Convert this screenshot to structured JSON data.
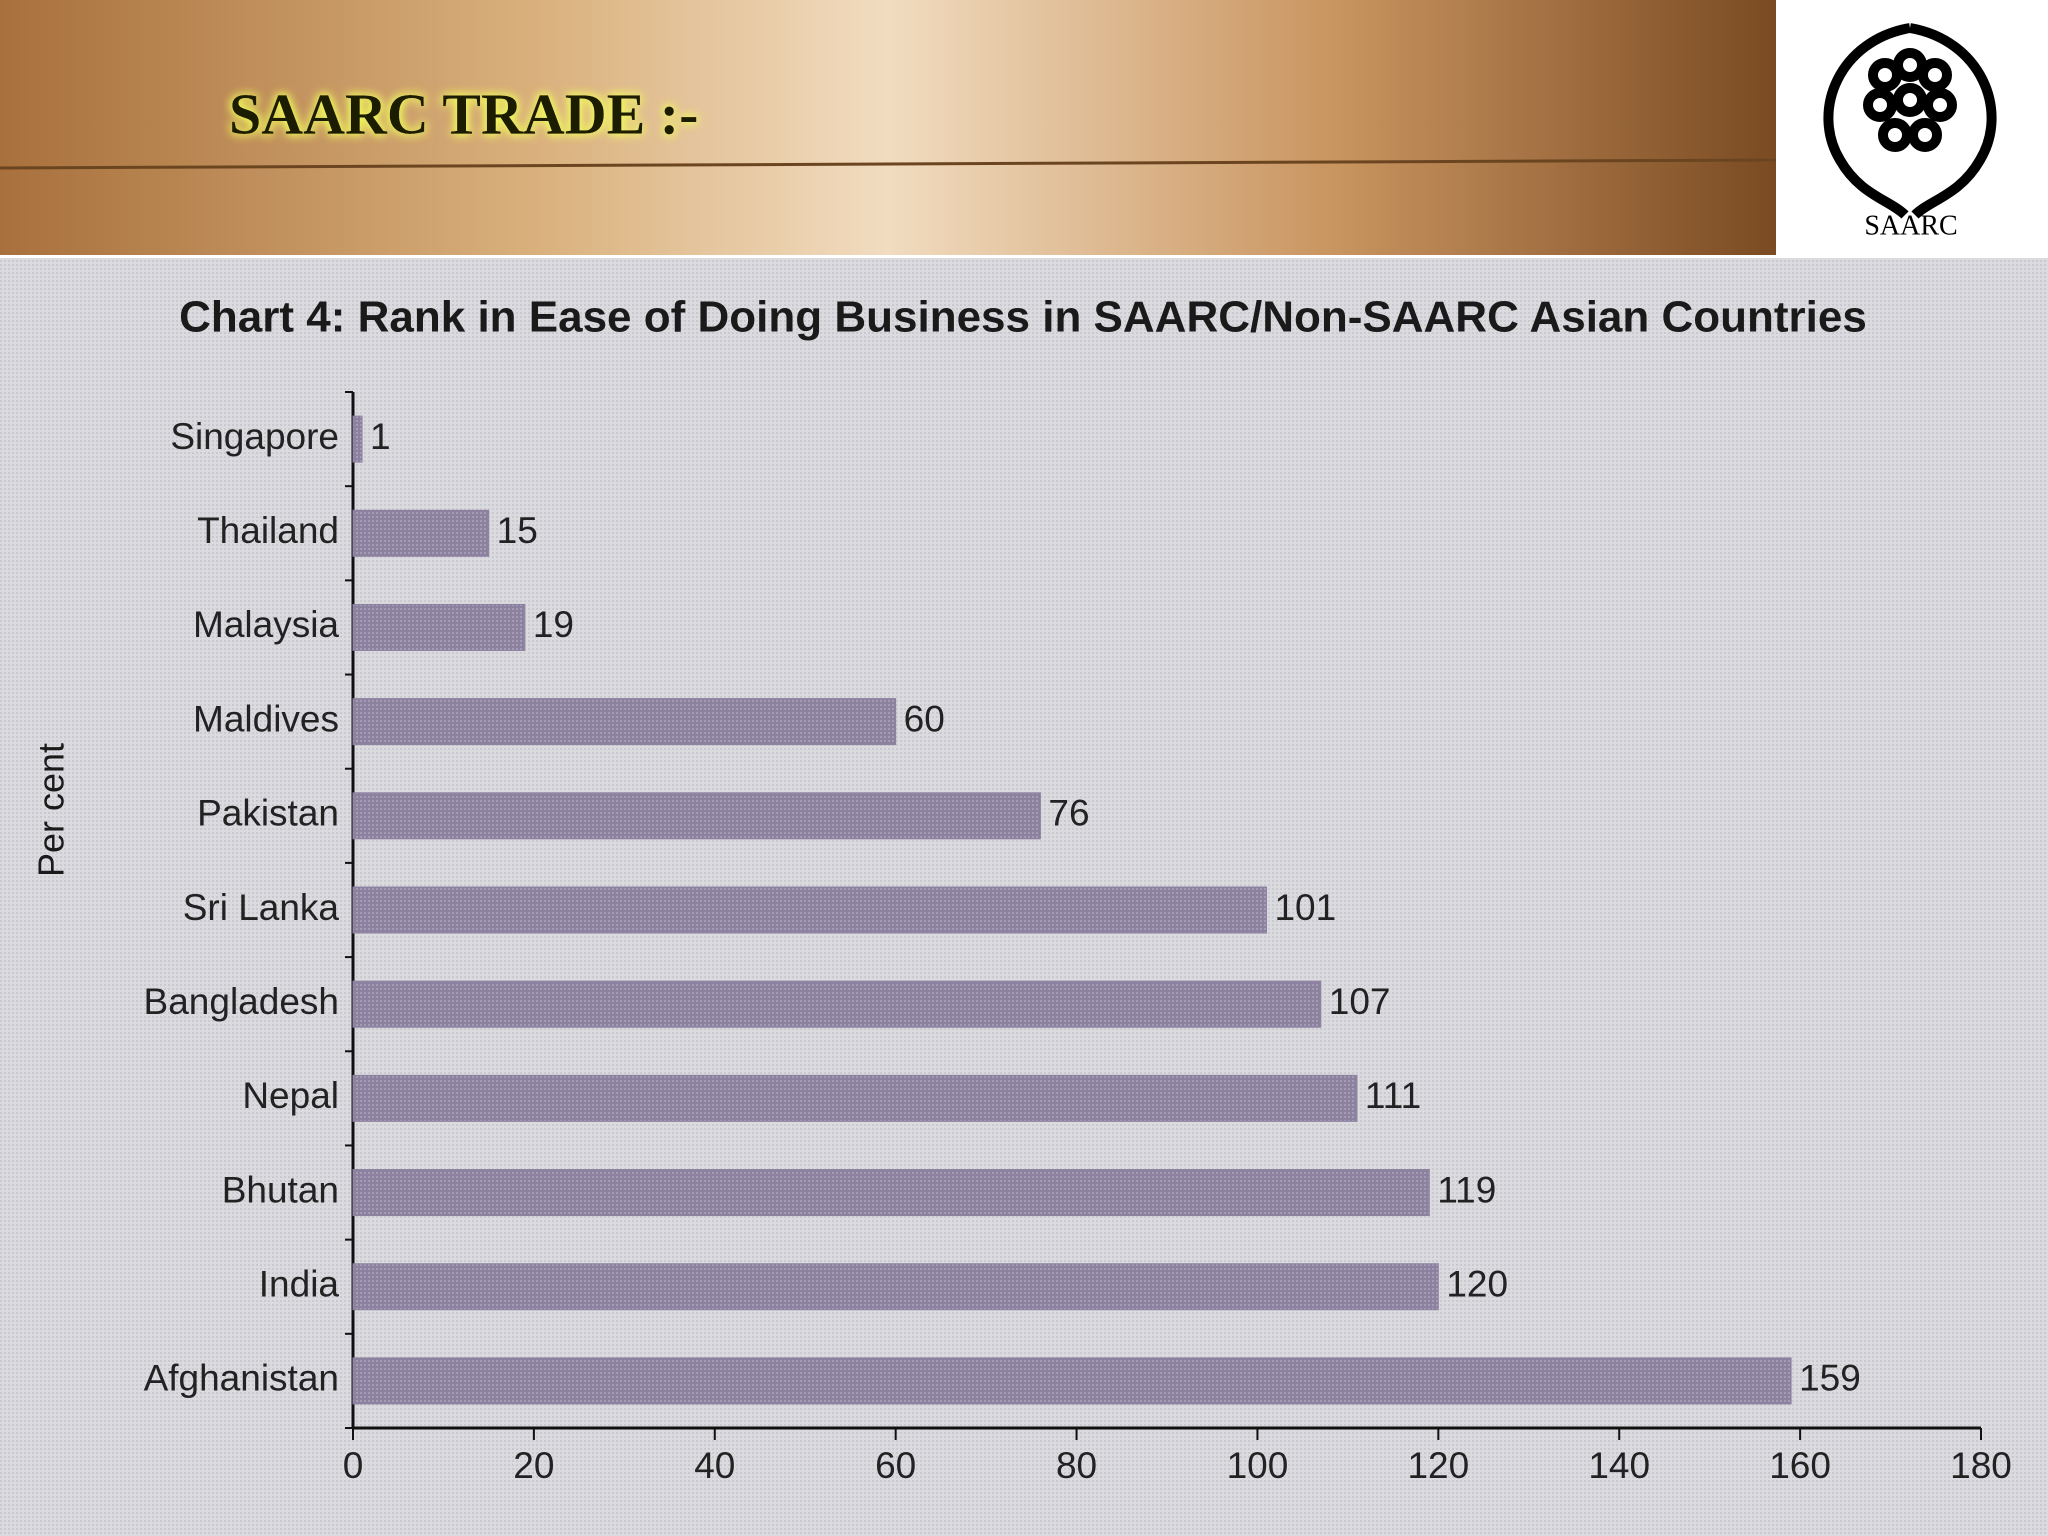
{
  "header": {
    "title": "SAARC TRADE :-",
    "logo_text": "SAARC"
  },
  "chart_data": {
    "type": "bar",
    "orientation": "horizontal",
    "title": "Chart 4: Rank in Ease of Doing Business in SAARC/Non-SAARC Asian Countries",
    "y_label": "Per cent",
    "categories": [
      "Singapore",
      "Thailand",
      "Malaysia",
      "Maldives",
      "Pakistan",
      "Sri Lanka",
      "Bangladesh",
      "Nepal",
      "Bhutan",
      "India",
      "Afghanistan"
    ],
    "values": [
      1,
      15,
      19,
      60,
      76,
      101,
      107,
      111,
      119,
      120,
      159
    ],
    "color": "#8c819f",
    "xlim": [
      0,
      180
    ],
    "xticks": [
      0,
      20,
      40,
      60,
      80,
      100,
      120,
      140,
      160,
      180
    ]
  }
}
